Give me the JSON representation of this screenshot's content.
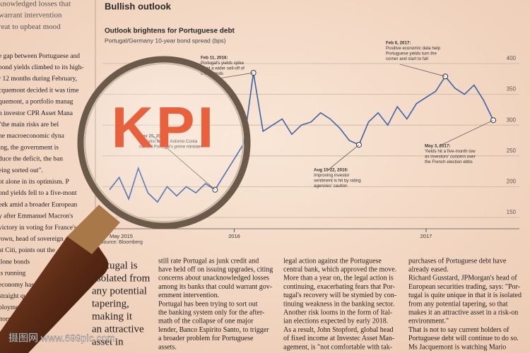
{
  "chart_data": {
    "type": "line",
    "title": "Bullish outlook",
    "subtitle": "Outlook brightens for Portuguese debt",
    "ylabel": "Portugal/Germany 10-year bond spread (bps)",
    "source": "Source: Bloomberg",
    "values": [
      195,
      215,
      180,
      230,
      190,
      175,
      200,
      185,
      200,
      190,
      205,
      195,
      220,
      245,
      270,
      385,
      290,
      300,
      310,
      285,
      300,
      305,
      320,
      310,
      295,
      275,
      268,
      305,
      320,
      300,
      330,
      310,
      335,
      345,
      355,
      379,
      360,
      350,
      365,
      340,
      308
    ],
    "color": "#3a64a8",
    "xlim": [
      0,
      40
    ],
    "ylim": [
      150,
      400
    ],
    "yticks": [
      150,
      200,
      250,
      300,
      350,
      400
    ],
    "xticks": [
      {
        "value": 0,
        "label": "May 2015"
      },
      {
        "value": 13,
        "label": "2016"
      },
      {
        "value": 33,
        "label": "2017"
      }
    ],
    "grid": true,
    "annotations": [
      {
        "index": 15,
        "lines": [
          "Feb 11, 2016:",
          "Portugal's yields spike",
          "amid a wider sell-off of",
          "bank bonds"
        ]
      },
      {
        "index": 11,
        "lines": [
          "Nov 25, 2015:",
          "Socialist leader Antonio Costa",
          "named Portugal's prime minister"
        ]
      },
      {
        "index": 26,
        "lines": [
          "Aug 15-22, 2016:",
          "Improving investor",
          "sentiment is hit by rating",
          "agencies' caution"
        ]
      },
      {
        "index": 35,
        "lines": [
          "Feb 6, 2017:",
          "Positive economic data help",
          "Portuguese yields turn the",
          "corner and start to fall"
        ]
      },
      {
        "index": 40,
        "lines": [
          "May 3, 2017:",
          "Yields hit a five-month low",
          "as investors' concern over",
          "the French election ebbs"
        ]
      }
    ]
  },
  "overlay": {
    "kpi": "KPI",
    "watermark": "摄图网 www.699pic.com"
  },
  "article": {
    "pullquote": [
      "Portugal is",
      "'isolated from",
      "any potential",
      "tapering,",
      "making it",
      "an attractive",
      "asset in"
    ],
    "columns": [
      [
        "still rate Portugal as junk credit and",
        "have held off on issuing upgrades, citing",
        "concerns about unacknowledged losses",
        "among its banks that could warrant gov-",
        "ernment intervention.",
        "Portugal has been trying to sort out",
        "the banking system only for the after-",
        "math of the collapse of one major",
        "lender, Banco Espirito Santo, to trigger",
        "a broader problem for Portuguese",
        "assets."
      ],
      [
        "legal action against the Portuguese",
        "central bank, which approved the move.",
        "More than a year on, the legal action is",
        "continuing, exacerbating fears that Por-",
        "tugal's recovery will be stymied by con-",
        "tinuing weakness in the banking sector.",
        "Another risk looms in the form of Ital-",
        "ian elections expected by early 2018.",
        "As a result, John Stopford, global head",
        "of fixed income at Investec Asset Man-",
        "agement, is \"not comfortable with tak-"
      ],
      [
        "purchases of Portuguese debt have",
        "already eased.",
        "Richard Gusstard, JPMorgan's head of",
        "European securities trading, says: \"Por-",
        "tugal is quite unique in that it is isolated",
        "from any potential tapering, so that",
        "makes it an attractive asset in a risk-on",
        "environment.\"",
        "That is not to say current holders of",
        "Portuguese debt will continue to do so.",
        "Ms Jacquemont is watching Mario"
      ]
    ],
    "left": [
      "knowledged losses that",
      "warrant intervention",
      "reat to upbeat mood",
      "e gap between Portuguese and",
      "bond yields climbed to its high-",
      "r 12 months during February,",
      "cquemont decided it was time",
      "quemont, a portfolio manag",
      "n investor CPR Asset Mana",
      "\"the main risks are bel",
      "he macroeconomic dyna",
      "ing, the government is",
      "duce the deficit, the ban",
      "eing sorted out\".",
      "ot alone in its optimism. P",
      "ond yields fell to a five-mont",
      "eek amid a broader European",
      "y after Emmanuel Macron's",
      "victory in voting for France's",
      "rown, head of sovereign de",
      "at Citi, points out the",
      "ilone bonds",
      "is running",
      "economy has",
      "straight quarters,",
      "ployment fell",
      "itors"
    ]
  }
}
